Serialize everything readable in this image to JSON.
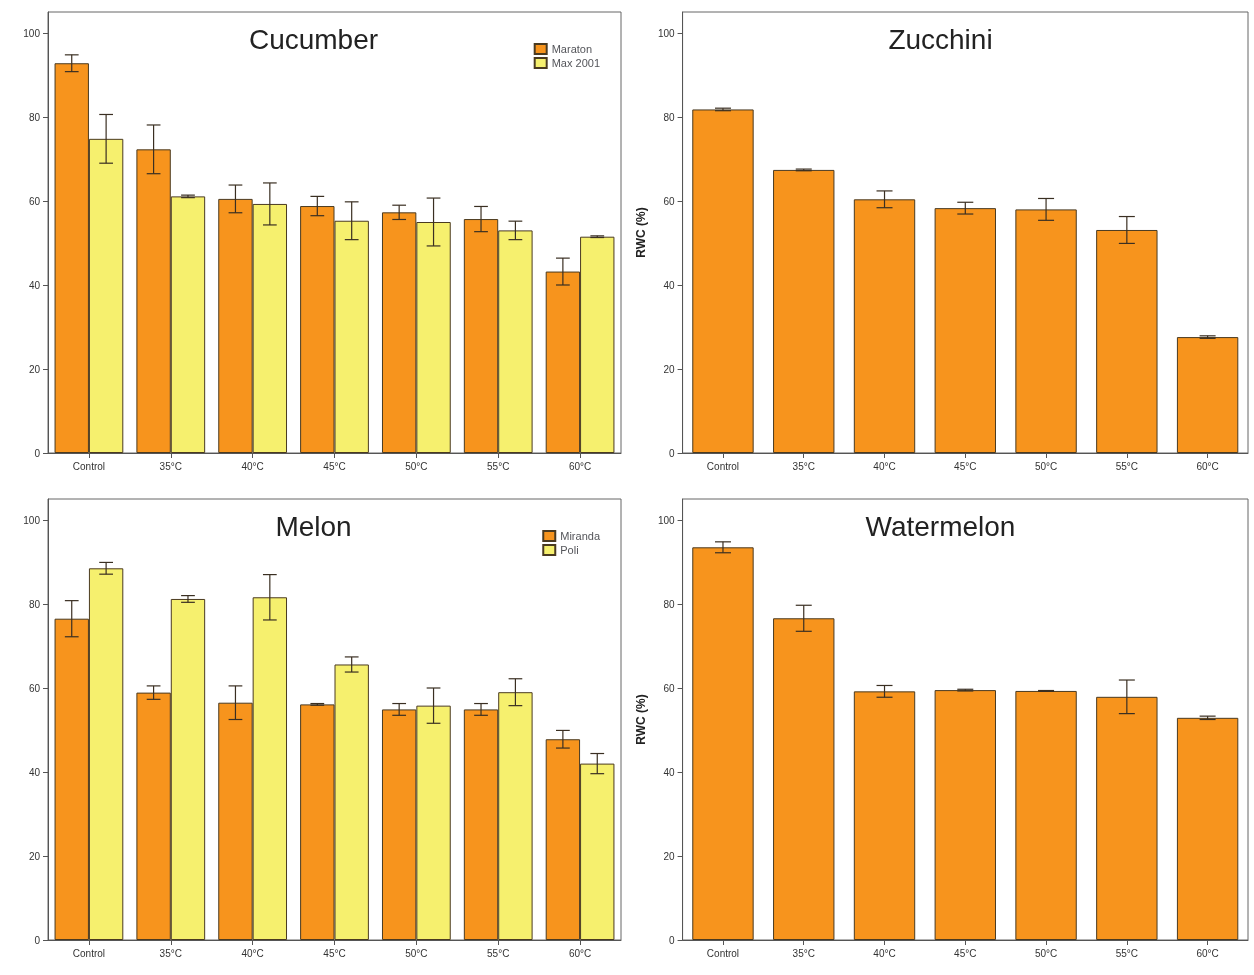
{
  "chart_data": [
    {
      "type": "bar",
      "title": "Cucumber",
      "categories": [
        "Control",
        "35°C",
        "40°C",
        "45°C",
        "50°C",
        "55°C",
        "60°C"
      ],
      "ylim": [
        0,
        105
      ],
      "yticks": [
        0,
        20,
        40,
        60,
        80,
        100
      ],
      "grid": false,
      "legend": "top right",
      "series": [
        {
          "name": "Maraton",
          "color": "#f7941d",
          "values": [
            92.8,
            72.3,
            60.5,
            58.8,
            57.3,
            55.7,
            43.2
          ],
          "errors": [
            2,
            5.8,
            3.3,
            2.3,
            1.7,
            3,
            3.2
          ]
        },
        {
          "name": "Max 2001",
          "color": "#f6f06e",
          "values": [
            74.8,
            61.1,
            59.3,
            55.3,
            55.0,
            53.0,
            51.5
          ],
          "errors": [
            5.8,
            0.3,
            5,
            4.5,
            5.7,
            2.2,
            0.2
          ]
        }
      ]
    },
    {
      "type": "bar",
      "title": "Zucchini",
      "ylabel": "RWC (%)",
      "categories": [
        "Control",
        "35°C",
        "40°C",
        "45°C",
        "50°C",
        "55°C",
        "60°C"
      ],
      "ylim": [
        0,
        105
      ],
      "yticks": [
        0,
        20,
        40,
        60,
        80,
        100
      ],
      "grid": false,
      "legend": false,
      "series": [
        {
          "color": "#f7941d",
          "values": [
            81.8,
            67.4,
            60.4,
            58.3,
            58.0,
            53.1,
            27.6
          ],
          "errors": [
            0.3,
            0.2,
            2,
            1.4,
            2.6,
            3.2,
            0.3
          ]
        }
      ]
    },
    {
      "type": "bar",
      "title": "Melon",
      "categories": [
        "Control",
        "35°C",
        "40°C",
        "45°C",
        "50°C",
        "55°C",
        "60°C"
      ],
      "ylim": [
        0,
        105
      ],
      "yticks": [
        0,
        20,
        40,
        60,
        80,
        100
      ],
      "grid": false,
      "legend": "top right",
      "series": [
        {
          "name": "Miranda",
          "color": "#f7941d",
          "values": [
            76.5,
            58.9,
            56.5,
            56.1,
            54.9,
            54.9,
            47.8
          ],
          "errors": [
            4.3,
            1.6,
            4,
            0.2,
            1.4,
            1.4,
            2.1
          ]
        },
        {
          "name": "Poli",
          "color": "#f6f06e",
          "values": [
            88.5,
            81.2,
            81.6,
            65.6,
            55.8,
            59.0,
            42.0
          ],
          "errors": [
            1.4,
            0.8,
            5.4,
            1.8,
            4.2,
            3.2,
            2.4
          ]
        }
      ]
    },
    {
      "type": "bar",
      "title": "Watermelon",
      "ylabel": "RWC (%)",
      "categories": [
        "Control",
        "35°C",
        "40°C",
        "45°C",
        "50°C",
        "55°C",
        "60°C"
      ],
      "ylim": [
        0,
        105
      ],
      "yticks": [
        0,
        20,
        40,
        60,
        80,
        100
      ],
      "grid": false,
      "legend": false,
      "series": [
        {
          "color": "#f7941d",
          "values": [
            93.5,
            76.6,
            59.2,
            59.5,
            59.3,
            57.9,
            52.9
          ],
          "errors": [
            1.3,
            3.1,
            1.4,
            0.2,
            0.1,
            4,
            0.4
          ]
        }
      ]
    }
  ]
}
